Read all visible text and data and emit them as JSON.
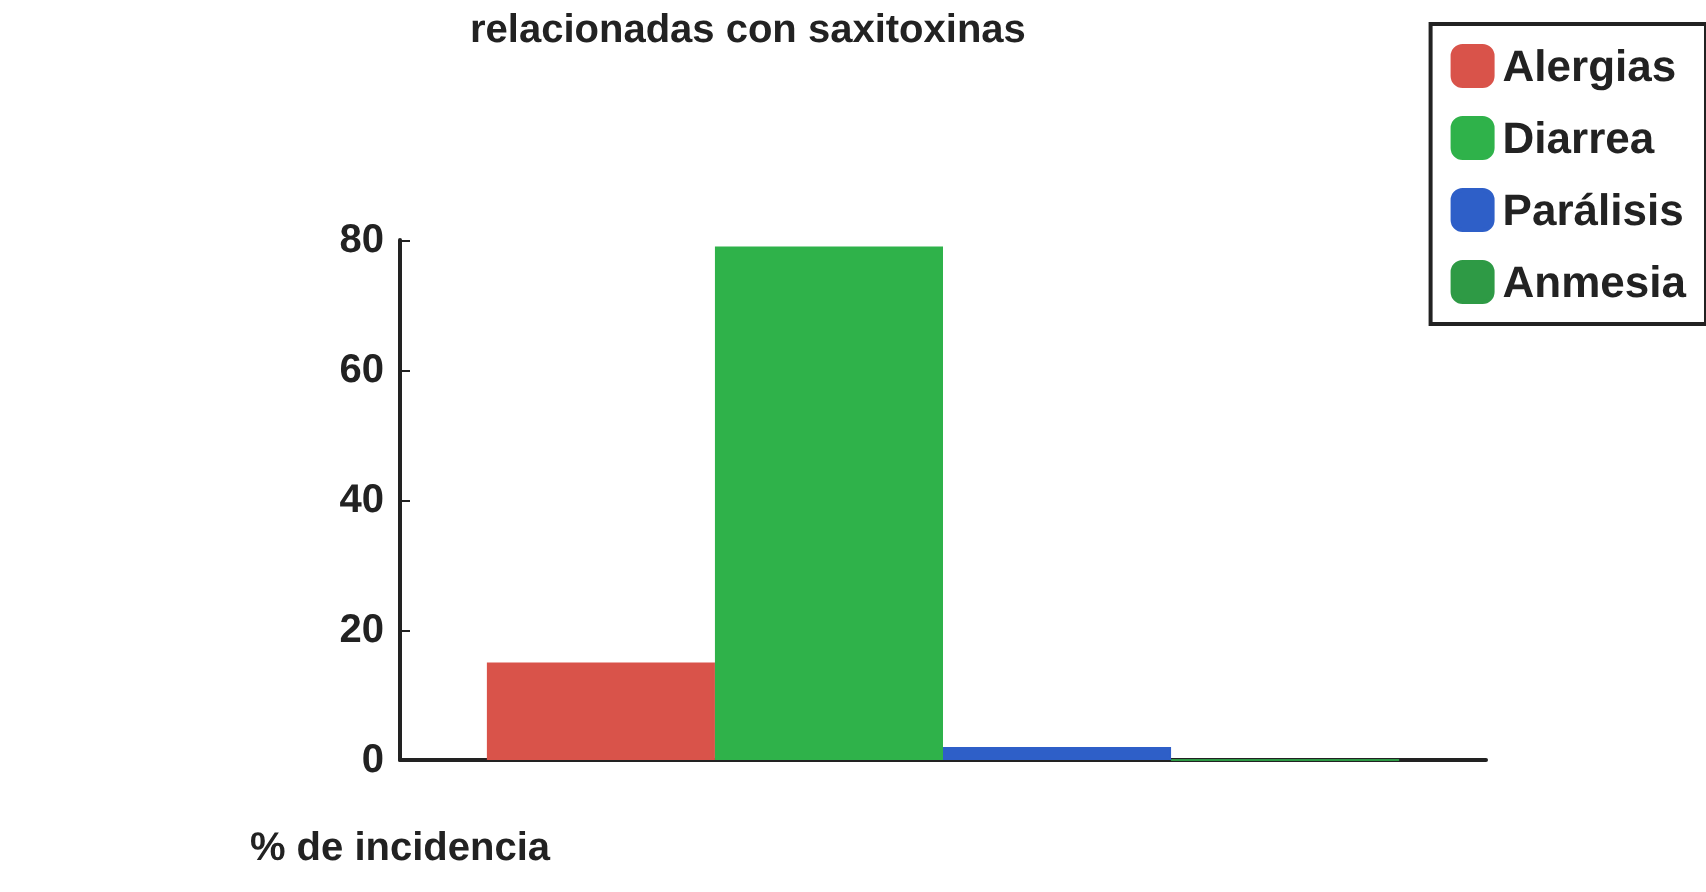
{
  "chart_data": {
    "type": "bar",
    "title": "relacionadas con saxitoxinas",
    "ylabel": "% de incidencia",
    "categories": [
      null
    ],
    "series": [
      {
        "name": "Alergias",
        "color": "#d9534a",
        "values": [
          15
        ]
      },
      {
        "name": "Diarrea",
        "color": "#2fb24a",
        "values": [
          79
        ]
      },
      {
        "name": "Parálisis",
        "color": "#2e5fc8",
        "values": [
          2
        ]
      },
      {
        "name": "Anmesia",
        "color": "#2e9a45",
        "values": [
          0
        ]
      }
    ],
    "ylim": [
      0,
      80
    ],
    "yticks": [
      0,
      20,
      40,
      60,
      80
    ],
    "grid": false,
    "legend": "top right"
  }
}
